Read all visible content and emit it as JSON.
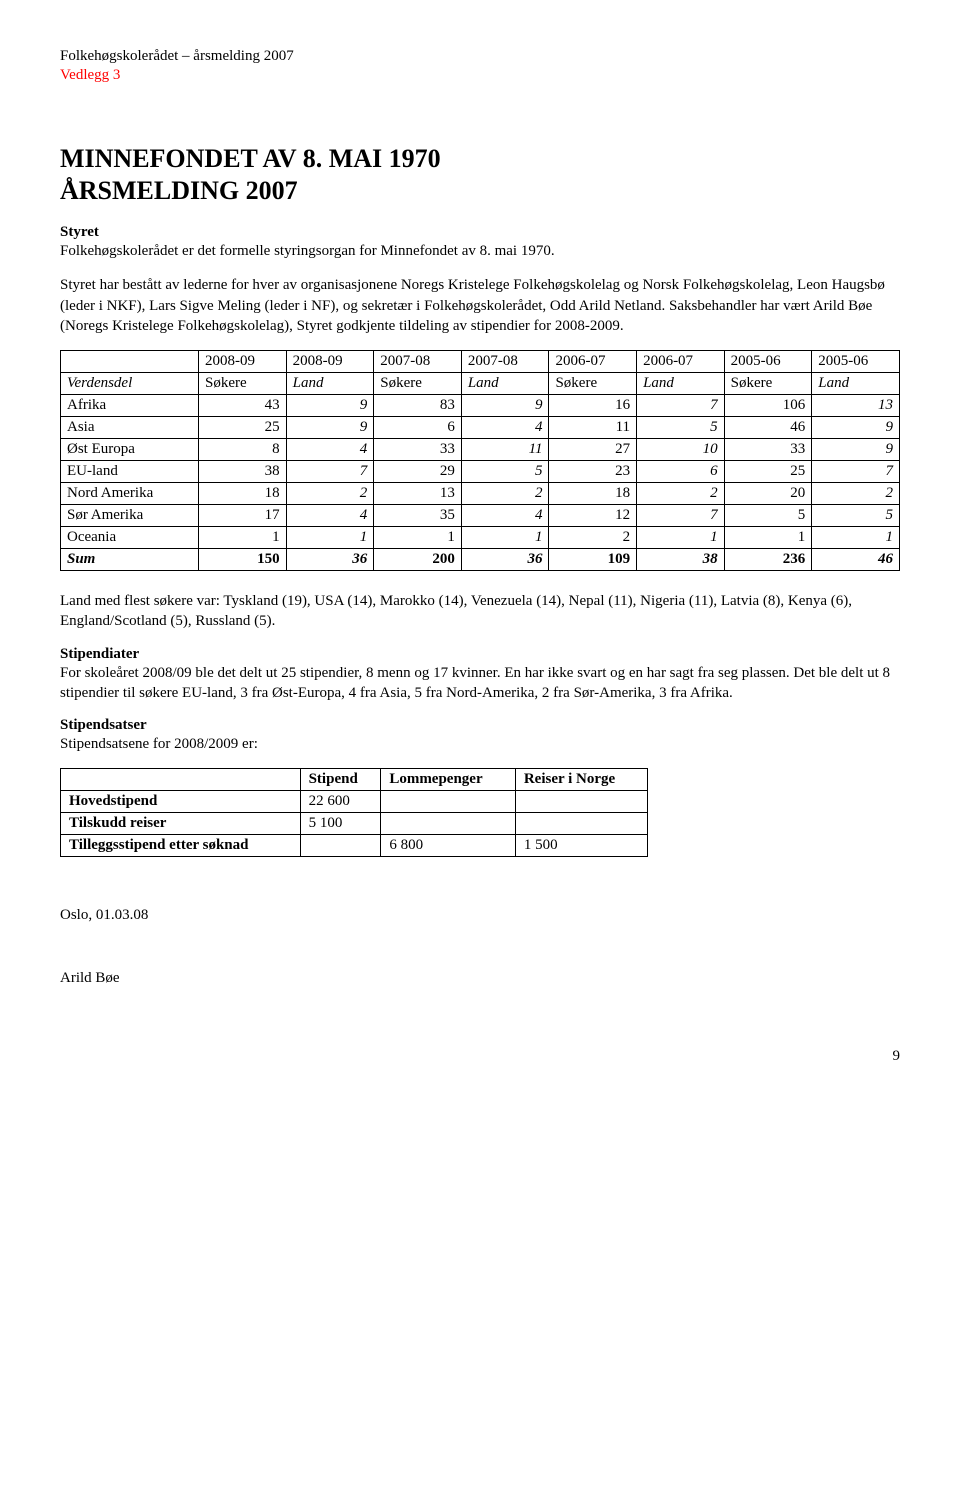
{
  "header": {
    "doc_title": "Folkehøgskolerådet – årsmelding 2007",
    "vedlegg": "Vedlegg 3"
  },
  "title1": "MINNEFONDET AV 8. MAI 1970",
  "title2": "ÅRSMELDING 2007",
  "styret": {
    "heading": "Styret",
    "p1": "Folkehøgskolerådet er det formelle styringsorgan for Minnefondet av 8. mai 1970.",
    "p2": "Styret har bestått av lederne for hver av organisasjonene Noregs Kristelege Folkehøgskolelag og Norsk Folkehøgskolelag, Leon Haugsbø (leder i NKF), Lars Sigve Meling (leder i NF), og sekretær i Folkehøgskolerådet, Odd Arild Netland. Saksbehandler har vært Arild Bøe (Noregs Kristelege Folkehøgskolelag), Styret godkjente tildeling av stipendier for 2008-2009."
  },
  "table1": {
    "year_headers": [
      "2008-09",
      "2008-09",
      "2007-08",
      "2007-08",
      "2006-07",
      "2006-07",
      "2005-06",
      "2005-06"
    ],
    "row_label_header": "Verdensdel",
    "col_labels": [
      "Søkere",
      "Land",
      "Søkere",
      "Land",
      "Søkere",
      "Land",
      "Søkere",
      "Land"
    ],
    "rows": [
      {
        "label": "Afrika",
        "vals": [
          "43",
          "9",
          "83",
          "9",
          "16",
          "7",
          "106",
          "13"
        ]
      },
      {
        "label": "Asia",
        "vals": [
          "25",
          "9",
          "6",
          "4",
          "11",
          "5",
          "46",
          "9"
        ]
      },
      {
        "label": "Øst Europa",
        "vals": [
          "8",
          "4",
          "33",
          "11",
          "27",
          "10",
          "33",
          "9"
        ]
      },
      {
        "label": "EU-land",
        "vals": [
          "38",
          "7",
          "29",
          "5",
          "23",
          "6",
          "25",
          "7"
        ]
      },
      {
        "label": "Nord Amerika",
        "vals": [
          "18",
          "2",
          "13",
          "2",
          "18",
          "2",
          "20",
          "2"
        ]
      },
      {
        "label": "Sør Amerika",
        "vals": [
          "17",
          "4",
          "35",
          "4",
          "12",
          "7",
          "5",
          "5"
        ]
      },
      {
        "label": "Oceania",
        "vals": [
          "1",
          "1",
          "1",
          "1",
          "2",
          "1",
          "1",
          "1"
        ]
      }
    ],
    "sum_label": "Sum",
    "sum_vals": [
      "150",
      "36",
      "200",
      "36",
      "109",
      "38",
      "236",
      "46"
    ]
  },
  "countries_text": "Land med flest søkere var: Tyskland (19), USA (14), Marokko (14), Venezuela (14), Nepal (11), Nigeria (11), Latvia (8), Kenya (6), England/Scotland (5), Russland (5).",
  "stipendiater": {
    "heading": "Stipendiater",
    "text": "For skoleåret 2008/09 ble det delt ut 25 stipendier, 8 menn og 17 kvinner. En har ikke svart og en har sagt fra seg plassen. Det ble delt ut 8 stipendier til søkere EU-land, 3 fra Øst-Europa, 4 fra Asia, 5 fra Nord-Amerika, 2 fra Sør-Amerika, 3 fra Afrika."
  },
  "stipendsatser": {
    "heading": "Stipendsatser",
    "text": "Stipendsatsene for 2008/2009 er:"
  },
  "table2": {
    "headers": [
      "",
      "Stipend",
      "Lommepenger",
      "Reiser i Norge"
    ],
    "rows": [
      {
        "label": "Hovedstipend",
        "vals": [
          "22 600",
          "",
          ""
        ]
      },
      {
        "label": "Tilskudd reiser",
        "vals": [
          "5 100",
          "",
          ""
        ]
      },
      {
        "label": "Tilleggsstipend etter søknad",
        "vals": [
          "",
          "6 800",
          "1 500"
        ]
      }
    ]
  },
  "footer": {
    "date": "Oslo, 01.03.08",
    "signature": "Arild Bøe",
    "page": "9"
  }
}
